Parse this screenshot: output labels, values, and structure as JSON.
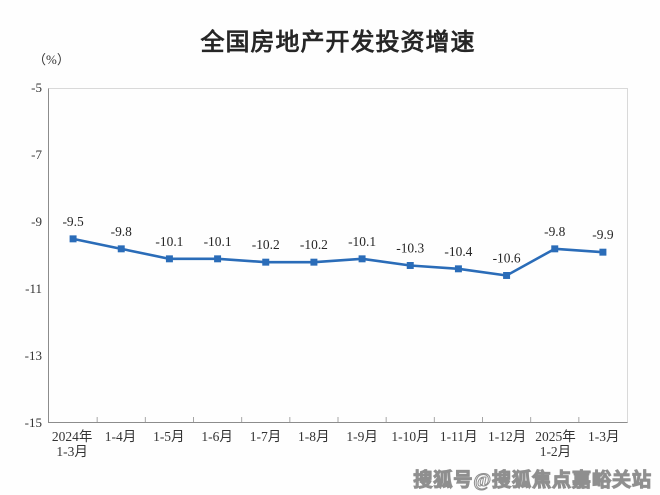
{
  "chart": {
    "title": "全国房地产开发投资增速",
    "unit_label": "（%）"
  },
  "chart_data": {
    "type": "line",
    "title": "全国房地产开发投资增速",
    "xlabel": "",
    "ylabel": "（%）",
    "categories": [
      "2024年\n1-3月",
      "1-4月",
      "1-5月",
      "1-6月",
      "1-7月",
      "1-8月",
      "1-9月",
      "1-10月",
      "1-11月",
      "1-12月",
      "2025年\n1-2月",
      "1-3月"
    ],
    "values": [
      -9.5,
      -9.8,
      -10.1,
      -10.1,
      -10.2,
      -10.2,
      -10.1,
      -10.3,
      -10.4,
      -10.6,
      -9.8,
      -9.9
    ],
    "data_labels": [
      "-9.5",
      "-9.8",
      "-10.1",
      "-10.1",
      "-10.2",
      "-10.2",
      "-10.1",
      "-10.3",
      "-10.4",
      "-10.6",
      "-9.8",
      "-9.9"
    ],
    "ylim": [
      -15,
      -5
    ],
    "yticks": [
      -5,
      -7,
      -9,
      -11,
      -13,
      -15
    ],
    "grid": false,
    "legend": "none",
    "line_color": "#2a6cb8",
    "marker": "square",
    "label_color": "#262626",
    "axis_text_color": "#333333"
  },
  "watermark": {
    "text": "搜狐号@搜狐焦点嘉峪关站"
  }
}
